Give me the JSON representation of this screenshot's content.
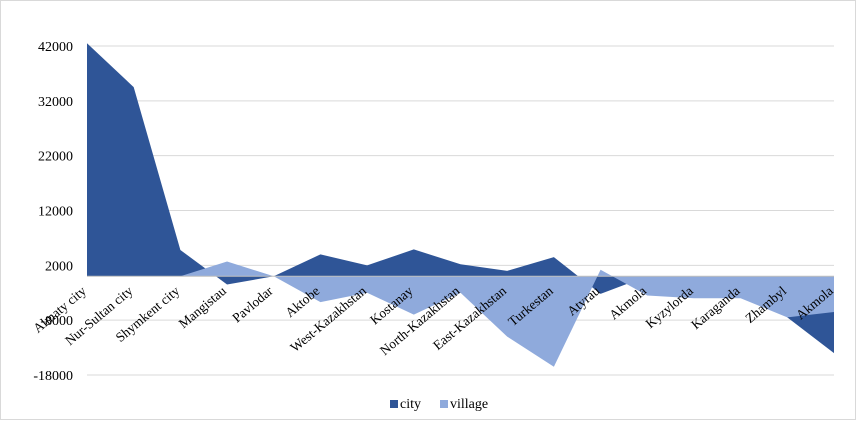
{
  "chart_data": {
    "type": "area",
    "categories": [
      "Almaty city",
      "Nur-Sultan city",
      "Shymkent city",
      "Mangistau",
      "Pavlodar",
      "Aktobe",
      "West-Kazakhstan",
      "Kostanay",
      "North-Kazakhstan",
      "East-Kazakhstan",
      "Turkestan",
      "Atyrau",
      "Akmola",
      "Kyzylorda",
      "Karaganda",
      "Zhambyl",
      "Akmola"
    ],
    "series": [
      {
        "name": "city",
        "color": "#2f5597",
        "values": [
          42500,
          34500,
          4800,
          -1500,
          0,
          4000,
          2000,
          4900,
          2200,
          1000,
          3500,
          -3200,
          0,
          0,
          0,
          -7500,
          -14000
        ]
      },
      {
        "name": "village",
        "color": "#8faadc",
        "values": [
          0,
          0,
          0,
          2700,
          0,
          -4700,
          -3000,
          -7000,
          -3000,
          -11000,
          -16500,
          1200,
          -3500,
          -4000,
          -4000,
          -7500,
          -6500
        ]
      }
    ],
    "yticks": [
      42000,
      32000,
      22000,
      12000,
      2000,
      -8000,
      -18000
    ],
    "ylim": [
      -18000,
      42000
    ],
    "grid": true,
    "legend": "bottom"
  }
}
